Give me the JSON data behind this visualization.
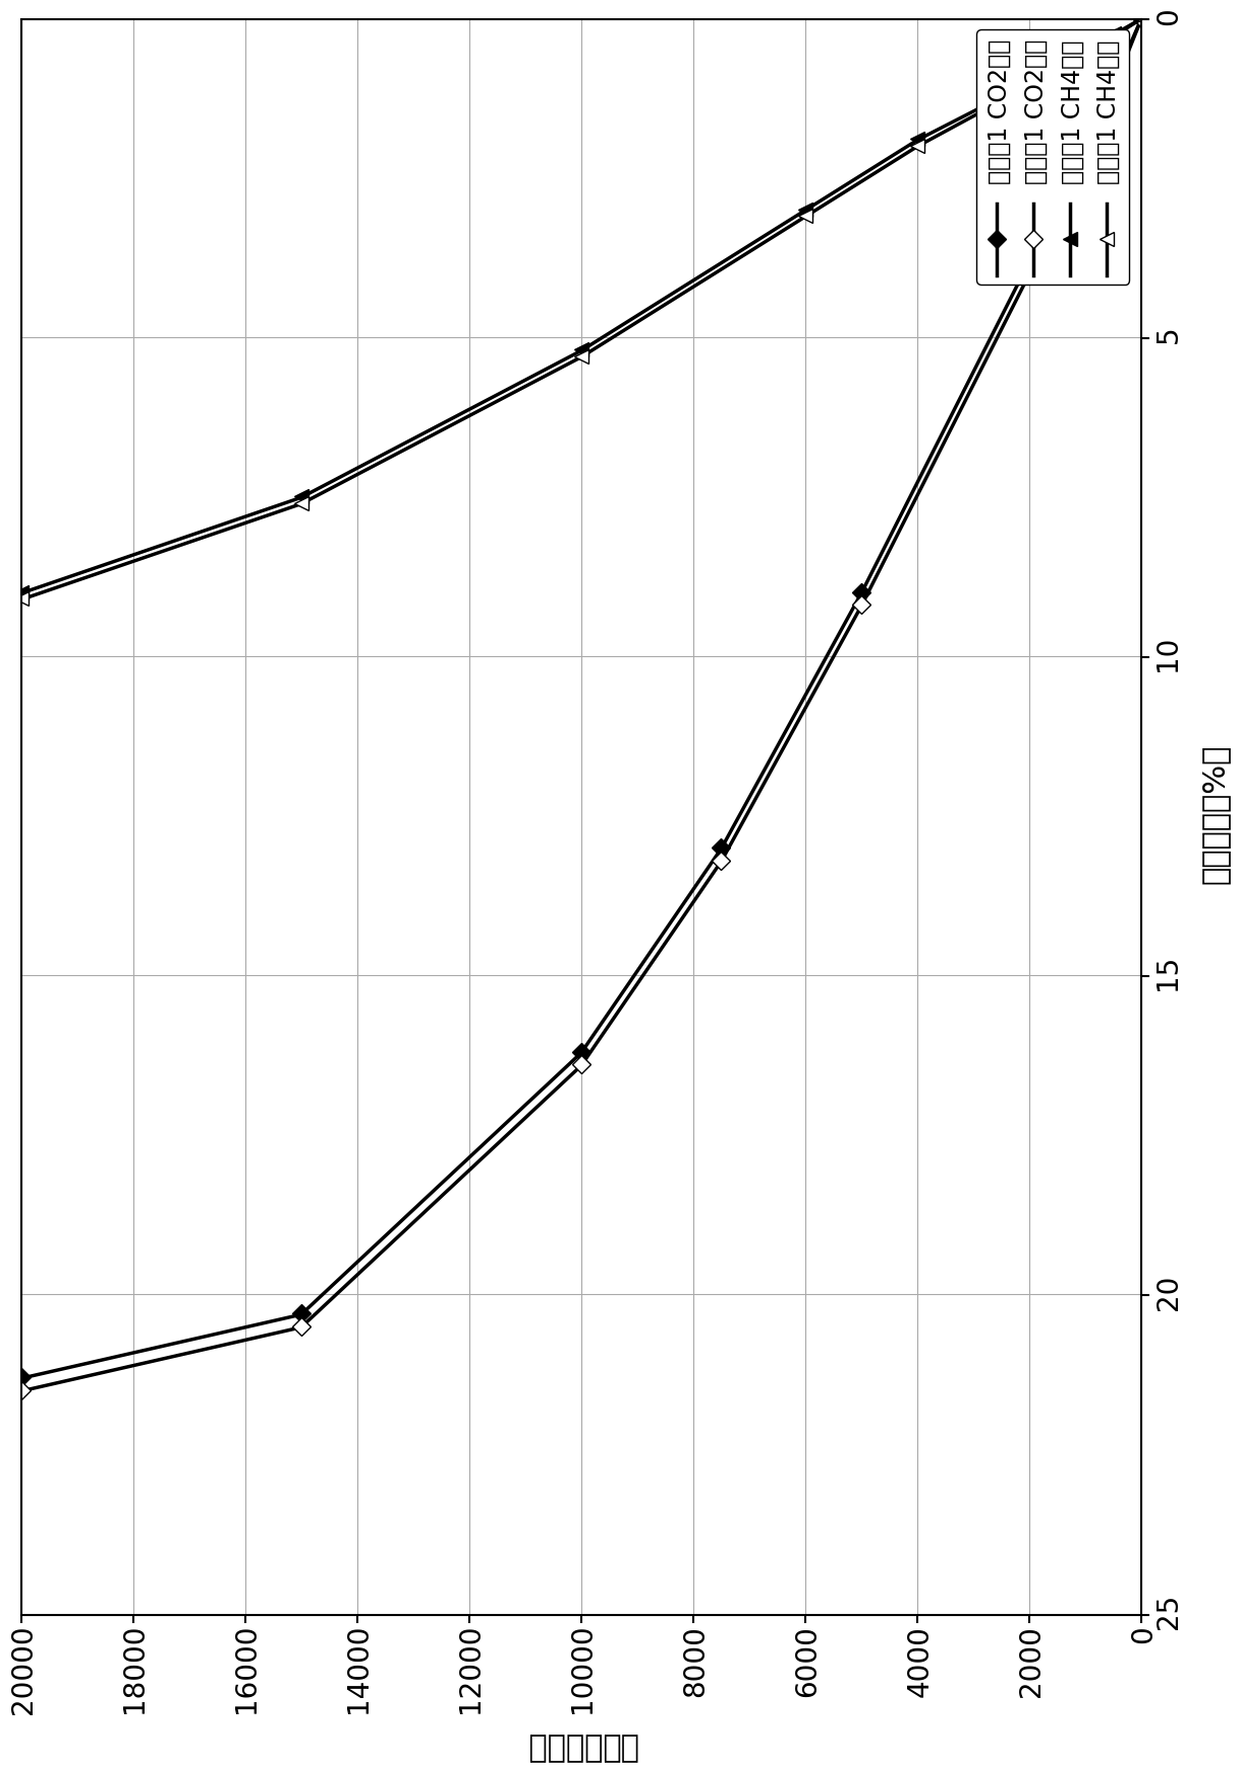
{
  "co2_ads_pressure": [
    0,
    500,
    1000,
    2000,
    5000,
    7500,
    10000,
    15000,
    20000
  ],
  "co2_ads_absorb": [
    0,
    1.0,
    2.0,
    3.8,
    9.0,
    13.0,
    16.2,
    20.3,
    21.3
  ],
  "co2_des_pressure": [
    0,
    500,
    1000,
    2000,
    5000,
    7500,
    10000,
    15000,
    20000
  ],
  "co2_des_absorb": [
    0,
    1.1,
    2.1,
    4.0,
    9.2,
    13.2,
    16.4,
    20.5,
    21.5
  ],
  "ch4_ads_pressure": [
    0,
    500,
    1000,
    2000,
    4000,
    6000,
    10000,
    15000,
    20000
  ],
  "ch4_ads_absorb": [
    0,
    0.25,
    0.5,
    1.0,
    1.9,
    3.0,
    5.2,
    7.5,
    9.0
  ],
  "ch4_des_pressure": [
    0,
    500,
    1000,
    2000,
    4000,
    6000,
    10000,
    15000,
    20000
  ],
  "ch4_des_absorb": [
    0,
    0.28,
    0.55,
    1.05,
    2.0,
    3.1,
    5.3,
    7.6,
    9.1
  ],
  "pressure_label": "压力（毫巴）",
  "absorb_label": "吸收（重量%）",
  "pressure_lim": [
    0,
    20000
  ],
  "absorb_lim": [
    0,
    25
  ],
  "pressure_ticks": [
    0,
    2000,
    4000,
    6000,
    8000,
    10000,
    12000,
    14000,
    16000,
    18000,
    20000
  ],
  "absorb_ticks": [
    0,
    5,
    10,
    15,
    20,
    25
  ],
  "legend_labels": [
    "实施例1 CO2吸附",
    "实施例1 CO2解吸",
    "实施例1 CH4吸附",
    "实施例1 CH4解吸"
  ],
  "line_color": "#000000",
  "fontsize_tick": 20,
  "fontsize_label": 22,
  "fontsize_legend": 17
}
